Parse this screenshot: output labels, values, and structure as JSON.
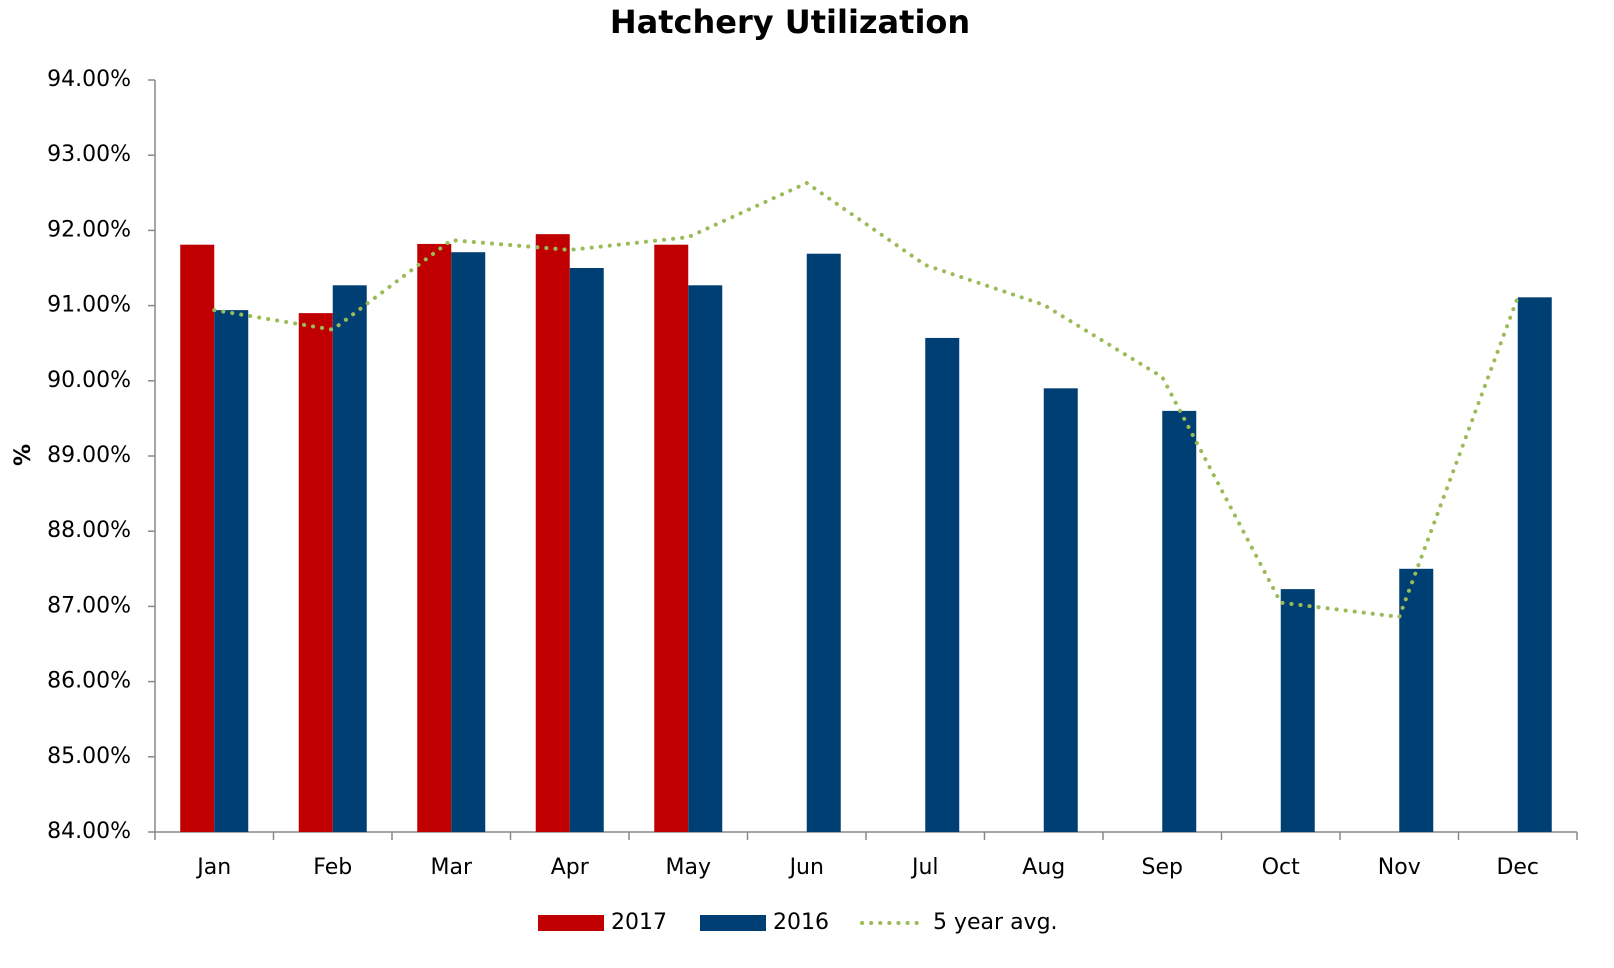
{
  "chart_data": {
    "type": "bar",
    "title": "Hatchery Utilization",
    "y_label": "%",
    "categories": [
      "Jan",
      "Feb",
      "Mar",
      "Apr",
      "May",
      "Jun",
      "Jul",
      "Aug",
      "Sep",
      "Oct",
      "Nov",
      "Dec"
    ],
    "series": [
      {
        "name": "2017",
        "type": "bar",
        "color": "#c00000",
        "values": [
          91.81,
          90.9,
          91.82,
          91.95,
          91.81,
          null,
          null,
          null,
          null,
          null,
          null,
          null
        ]
      },
      {
        "name": "2016",
        "type": "bar",
        "color": "#003f73",
        "values": [
          90.94,
          91.27,
          91.71,
          91.5,
          91.27,
          91.69,
          90.57,
          89.9,
          89.6,
          87.23,
          87.5,
          91.11
        ]
      },
      {
        "name": "5 year avg.",
        "type": "line",
        "color": "#9bbb59",
        "values": [
          90.94,
          90.68,
          91.87,
          91.74,
          91.91,
          92.63,
          91.54,
          91.01,
          90.05,
          87.05,
          86.86,
          91.11
        ]
      }
    ],
    "ylim": [
      84,
      94
    ],
    "yticks": [
      {
        "value": 84,
        "label": "84.00%"
      },
      {
        "value": 85,
        "label": "85.00%"
      },
      {
        "value": 86,
        "label": "86.00%"
      },
      {
        "value": 87,
        "label": "87.00%"
      },
      {
        "value": 88,
        "label": "88.00%"
      },
      {
        "value": 89,
        "label": "89.00%"
      },
      {
        "value": 90,
        "label": "90.00%"
      },
      {
        "value": 91,
        "label": "91.00%"
      },
      {
        "value": 92,
        "label": "92.00%"
      },
      {
        "value": 93,
        "label": "93.00%"
      },
      {
        "value": 94,
        "label": "94.00%"
      }
    ],
    "legend": "bottom"
  }
}
